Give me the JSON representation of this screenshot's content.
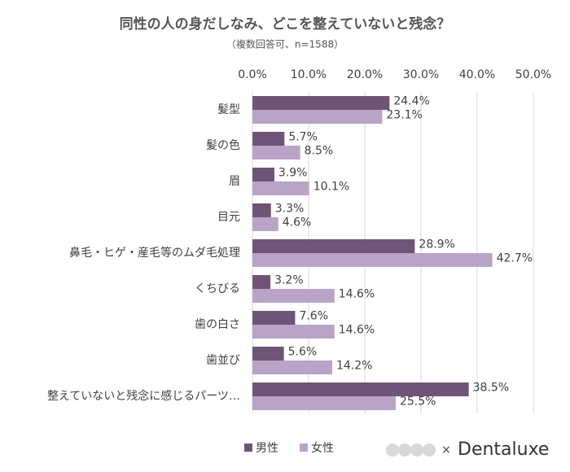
{
  "chart_data": {
    "type": "bar",
    "orientation": "horizontal",
    "title": "同性の人の身だしなみ、どこを整えていないと残念？",
    "subtitle": "（複数回答可、n=1588）",
    "categories": [
      "髪型",
      "髪の色",
      "眉",
      "目元",
      "鼻毛・ヒゲ・産毛等のムダ毛処理",
      "くちびる",
      "歯の白さ",
      "歯並び",
      "整えていないと残念に感じるパーツ…"
    ],
    "series": [
      {
        "name": "男性",
        "color": "#6e5577",
        "values": [
          24.4,
          5.7,
          3.9,
          3.3,
          28.9,
          3.2,
          7.6,
          5.6,
          38.5
        ],
        "value_labels": [
          "24.4%",
          "5.7%",
          "3.9%",
          "3.3%",
          "28.9%",
          "3.2%",
          "7.6%",
          "5.6%",
          "38.5%"
        ]
      },
      {
        "name": "女性",
        "color": "#b9a3c6",
        "values": [
          23.1,
          8.5,
          10.1,
          4.6,
          42.7,
          14.6,
          14.6,
          14.2,
          25.5
        ],
        "value_labels": [
          "23.1%",
          "8.5%",
          "10.1%",
          "4.6%",
          "42.7%",
          "14.6%",
          "14.6%",
          "14.2%",
          "25.5%"
        ]
      }
    ],
    "xlim": [
      0,
      50
    ],
    "xticks": [
      {
        "value": 0,
        "label": "0.0%"
      },
      {
        "value": 10,
        "label": "10.0%"
      },
      {
        "value": 20,
        "label": "20.0%"
      },
      {
        "value": 30,
        "label": "30.0%"
      },
      {
        "value": 40,
        "label": "40.0%"
      },
      {
        "value": 50,
        "label": "50.0%"
      }
    ],
    "grid": true,
    "legend": "bottom",
    "brand_separator": "×",
    "brand": "Dentaluxe"
  }
}
